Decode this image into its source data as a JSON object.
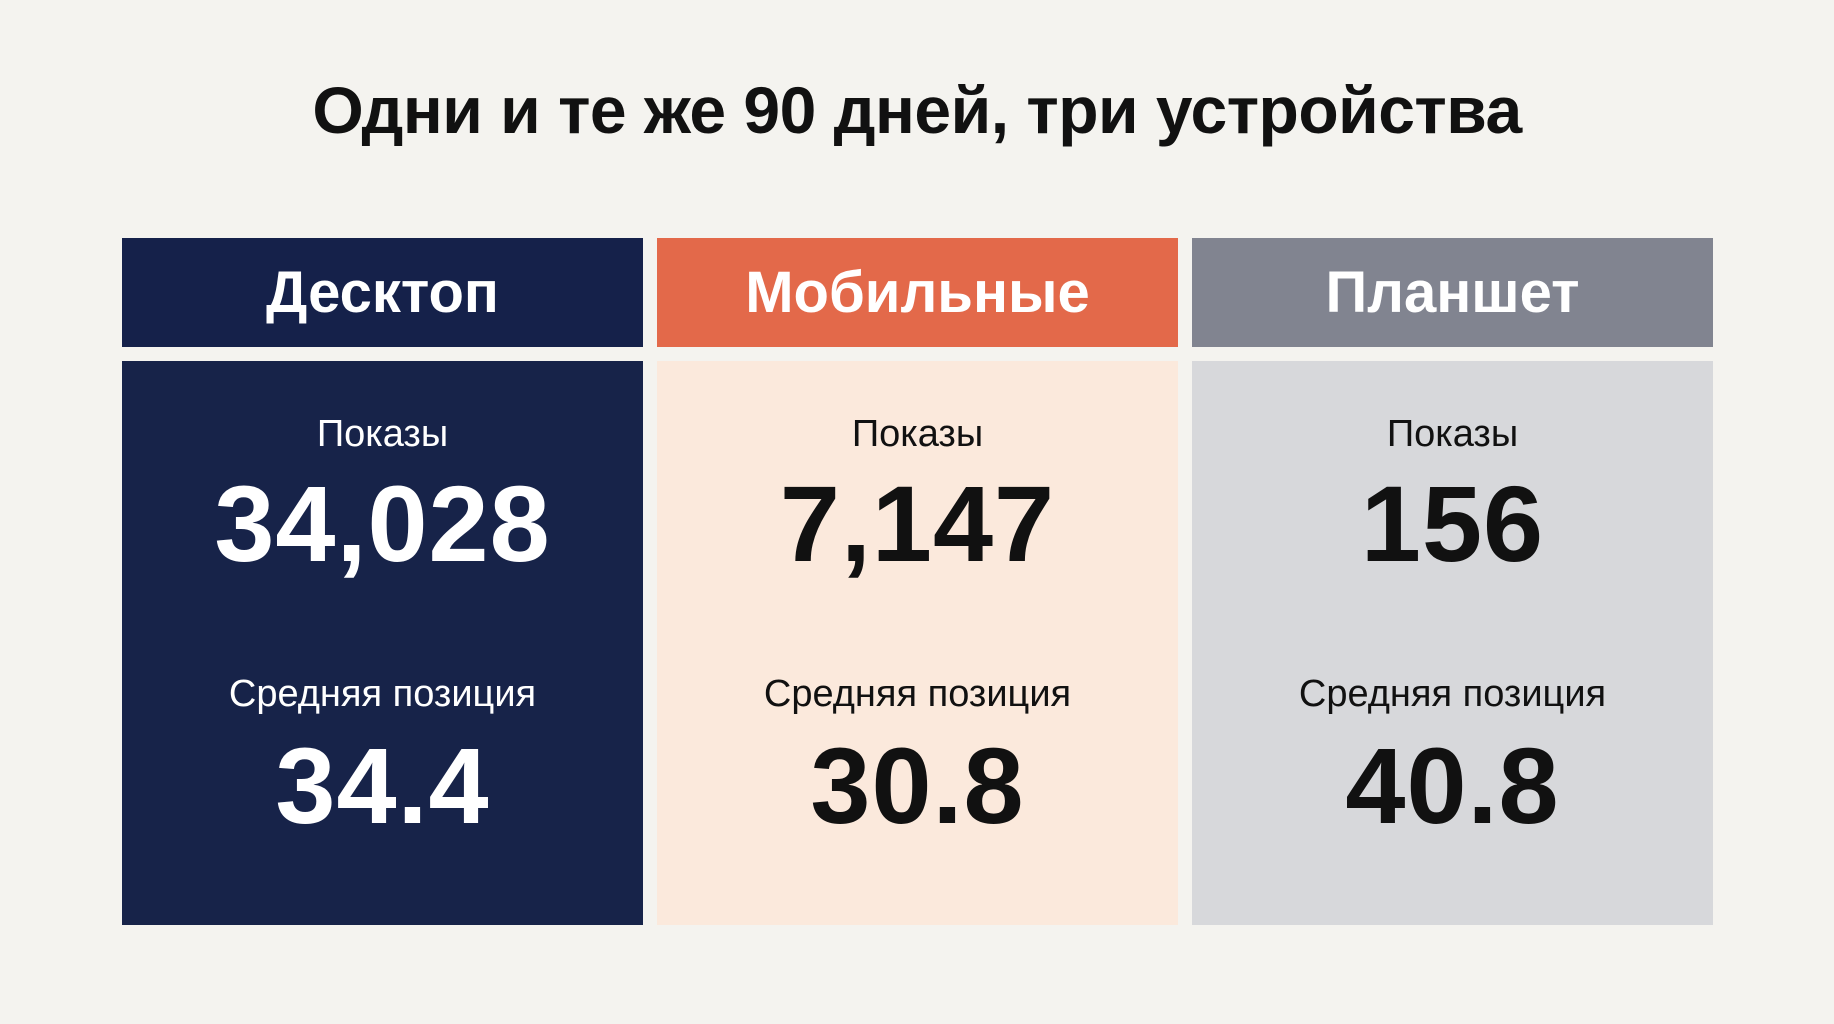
{
  "title": "Одни и те же 90 дней, три устройства",
  "columns": [
    {
      "device": "Десктоп",
      "impressions_label": "Показы",
      "impressions": "34,028",
      "position_label": "Средняя позиция",
      "position": "34.4",
      "header_color": "#15214a",
      "body_color": "#172349"
    },
    {
      "device": "Мобильные",
      "impressions_label": "Показы",
      "impressions": "7,147",
      "position_label": "Средняя позиция",
      "position": "30.8",
      "header_color": "#e3694a",
      "body_color": "#fbe9dc"
    },
    {
      "device": "Планшет",
      "impressions_label": "Показы",
      "impressions": "156",
      "position_label": "Средняя позиция",
      "position": "40.8",
      "header_color": "#818490",
      "body_color": "#d7d8db"
    }
  ]
}
